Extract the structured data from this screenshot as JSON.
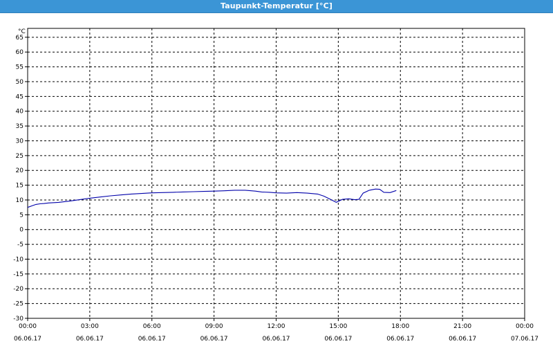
{
  "window": {
    "title": "Taupunkt-Temperatur [°C]"
  },
  "chart_data": {
    "type": "line",
    "title": "Taupunkt-Temperatur [°C]",
    "ylabel": "°C",
    "ylim": [
      -30,
      68
    ],
    "yticks": [
      65,
      60,
      55,
      50,
      45,
      40,
      35,
      30,
      25,
      20,
      15,
      10,
      5,
      0,
      -5,
      -10,
      -15,
      -20,
      -25,
      -30
    ],
    "xlim": [
      "2017-06-06 00:00",
      "2017-06-07 00:00"
    ],
    "xticks": [
      {
        "time": "00:00",
        "date": "06.06.17",
        "hour": 0
      },
      {
        "time": "03:00",
        "date": "06.06.17",
        "hour": 3
      },
      {
        "time": "06:00",
        "date": "06.06.17",
        "hour": 6
      },
      {
        "time": "09:00",
        "date": "06.06.17",
        "hour": 9
      },
      {
        "time": "12:00",
        "date": "06.06.17",
        "hour": 12
      },
      {
        "time": "15:00",
        "date": "06.06.17",
        "hour": 15
      },
      {
        "time": "18:00",
        "date": "06.06.17",
        "hour": 18
      },
      {
        "time": "21:00",
        "date": "06.06.17",
        "hour": 21
      },
      {
        "time": "00:00",
        "date": "07.06.17",
        "hour": 24
      }
    ],
    "grid": true,
    "series": [
      {
        "color": "#0000aa",
        "x": [
          0,
          0.2,
          0.4,
          0.6,
          0.8,
          1.0,
          1.5,
          2.0,
          2.5,
          3.0,
          3.5,
          4.0,
          4.5,
          5.0,
          5.5,
          6.0,
          6.5,
          7.0,
          7.5,
          8.0,
          8.5,
          9.0,
          9.5,
          10.0,
          10.5,
          11.0,
          11.3,
          11.7,
          12.0,
          12.5,
          13.0,
          13.5,
          14.0,
          14.3,
          14.6,
          14.9,
          15.2,
          15.5,
          15.8,
          16.0,
          16.2,
          16.5,
          16.8,
          17.0,
          17.2,
          17.5,
          17.8
        ],
        "y": [
          7.5,
          8.0,
          8.5,
          8.7,
          8.8,
          9.0,
          9.2,
          9.6,
          10.1,
          10.6,
          11.0,
          11.4,
          11.7,
          12.0,
          12.2,
          12.4,
          12.5,
          12.6,
          12.7,
          12.8,
          12.9,
          13.0,
          13.1,
          13.3,
          13.3,
          13.0,
          12.7,
          12.6,
          12.4,
          12.3,
          12.5,
          12.3,
          12.0,
          11.3,
          10.3,
          9.2,
          10.2,
          10.4,
          10.1,
          10.2,
          12.3,
          13.3,
          13.7,
          13.6,
          12.6,
          12.5,
          13.2
        ]
      }
    ]
  }
}
